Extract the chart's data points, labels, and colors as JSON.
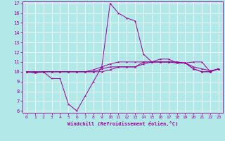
{
  "xlabel": "Windchill (Refroidissement éolien,°C)",
  "background_color": "#b2e8e8",
  "line_color": "#990099",
  "grid_color": "#ffffff",
  "xlim": [
    -0.5,
    23.5
  ],
  "ylim": [
    5.8,
    17.2
  ],
  "yticks": [
    6,
    7,
    8,
    9,
    10,
    11,
    12,
    13,
    14,
    15,
    16,
    17
  ],
  "xticks": [
    0,
    1,
    2,
    3,
    4,
    5,
    6,
    7,
    8,
    9,
    10,
    11,
    12,
    13,
    14,
    15,
    16,
    17,
    18,
    19,
    20,
    21,
    22,
    23
  ],
  "line1_x": [
    0,
    1,
    2,
    3,
    4,
    5,
    6,
    7,
    8,
    9,
    10,
    11,
    12,
    13,
    14,
    15,
    16,
    17,
    18,
    19,
    20,
    21,
    22,
    23
  ],
  "line1_y": [
    10.0,
    9.9,
    10.0,
    9.3,
    9.3,
    6.7,
    6.0,
    7.5,
    9.0,
    10.5,
    17.0,
    16.0,
    15.5,
    15.2,
    11.8,
    11.0,
    11.3,
    11.3,
    10.9,
    10.9,
    11.0,
    11.0,
    10.0,
    10.3
  ],
  "line2_x": [
    0,
    1,
    2,
    3,
    4,
    5,
    6,
    7,
    8,
    9,
    10,
    11,
    12,
    13,
    14,
    15,
    16,
    17,
    18,
    19,
    20,
    21,
    22,
    23
  ],
  "line2_y": [
    10.0,
    9.9,
    10.0,
    10.0,
    10.0,
    10.0,
    10.0,
    10.0,
    10.0,
    10.3,
    10.5,
    10.5,
    10.5,
    10.5,
    11.0,
    11.0,
    11.0,
    11.0,
    11.0,
    10.9,
    10.3,
    10.0,
    10.0,
    10.3
  ],
  "line3_x": [
    0,
    1,
    2,
    3,
    4,
    5,
    6,
    7,
    8,
    9,
    10,
    11,
    12,
    13,
    14,
    15,
    16,
    17,
    18,
    19,
    20,
    21,
    22,
    23
  ],
  "line3_y": [
    10.0,
    10.0,
    10.0,
    10.0,
    10.0,
    10.0,
    10.0,
    10.0,
    10.2,
    10.5,
    10.8,
    11.0,
    11.0,
    11.0,
    11.0,
    11.0,
    11.0,
    11.0,
    11.0,
    10.9,
    10.5,
    10.3,
    10.1,
    10.3
  ],
  "line4_x": [
    0,
    1,
    2,
    3,
    4,
    5,
    6,
    7,
    8,
    9,
    10,
    11,
    12,
    13,
    14,
    15,
    16,
    17,
    18,
    19,
    20,
    21,
    22,
    23
  ],
  "line4_y": [
    10.0,
    10.0,
    10.0,
    10.0,
    10.0,
    10.0,
    10.0,
    10.0,
    10.0,
    10.0,
    10.2,
    10.5,
    10.5,
    10.5,
    10.8,
    11.0,
    11.0,
    11.0,
    10.9,
    10.9,
    10.3,
    10.0,
    10.0,
    10.3
  ]
}
